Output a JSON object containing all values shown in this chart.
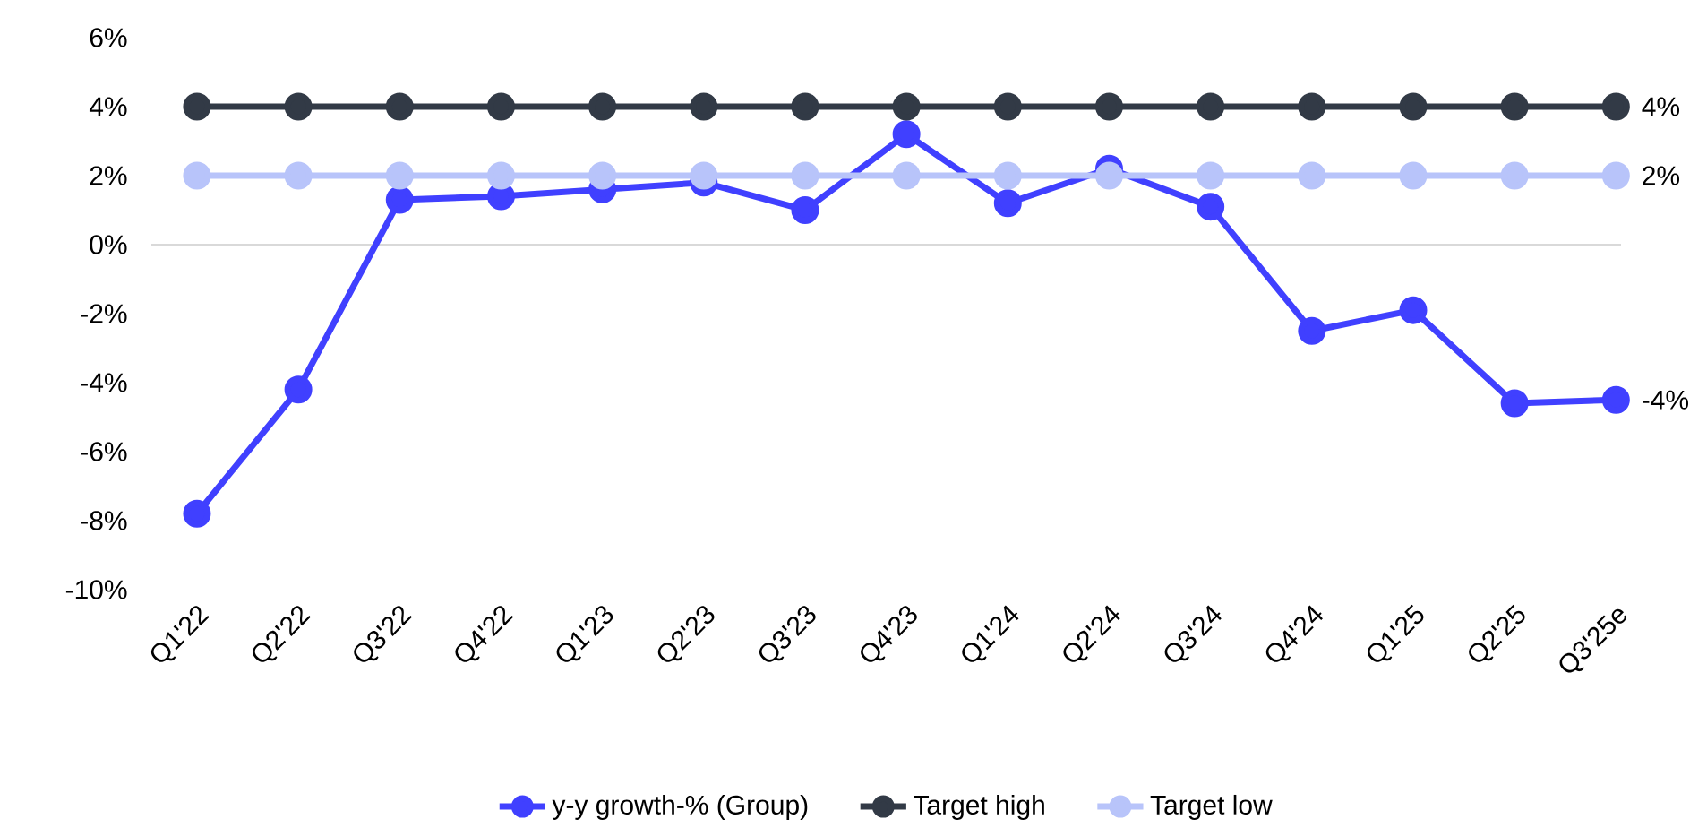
{
  "chart_data": {
    "type": "line",
    "categories": [
      "Q1'22",
      "Q2'22",
      "Q3'22",
      "Q4'22",
      "Q1'23",
      "Q2'23",
      "Q3'23",
      "Q4'23",
      "Q1'24",
      "Q2'24",
      "Q3'24",
      "Q4'24",
      "Q1'25",
      "Q2'25",
      "Q3'25e"
    ],
    "series": [
      {
        "name": "y-y growth-% (Group)",
        "color": "#4040ff",
        "values": [
          -7.8,
          -4.2,
          1.3,
          1.4,
          1.6,
          1.8,
          1.0,
          3.2,
          1.2,
          2.2,
          1.1,
          -2.5,
          -1.9,
          -4.6,
          -4.5
        ],
        "value_labels": [
          null,
          null,
          null,
          null,
          null,
          null,
          null,
          null,
          null,
          null,
          null,
          null,
          null,
          null,
          "-4%"
        ]
      },
      {
        "name": "Target high",
        "color": "#323a46",
        "values": [
          4,
          4,
          4,
          4,
          4,
          4,
          4,
          4,
          4,
          4,
          4,
          4,
          4,
          4,
          4
        ],
        "value_labels": [
          null,
          null,
          null,
          null,
          null,
          null,
          null,
          null,
          null,
          null,
          null,
          null,
          null,
          null,
          "4%"
        ]
      },
      {
        "name": "Target low",
        "color": "#b8c4fa",
        "values": [
          2,
          2,
          2,
          2,
          2,
          2,
          2,
          2,
          2,
          2,
          2,
          2,
          2,
          2,
          2
        ],
        "value_labels": [
          null,
          null,
          null,
          null,
          null,
          null,
          null,
          null,
          null,
          null,
          null,
          null,
          null,
          null,
          "2%"
        ]
      }
    ],
    "ylim": [
      -10,
      6
    ],
    "yticks": [
      {
        "value": -10,
        "label": "-10%"
      },
      {
        "value": -8,
        "label": "-8%"
      },
      {
        "value": -6,
        "label": "-6%"
      },
      {
        "value": -4,
        "label": "-4%"
      },
      {
        "value": -2,
        "label": "-2%"
      },
      {
        "value": 0,
        "label": "0%"
      },
      {
        "value": 2,
        "label": "2%"
      },
      {
        "value": 4,
        "label": "4%"
      },
      {
        "value": 6,
        "label": "6%"
      }
    ],
    "legend": "bottom",
    "marker": "circle",
    "line_style": "solid"
  }
}
